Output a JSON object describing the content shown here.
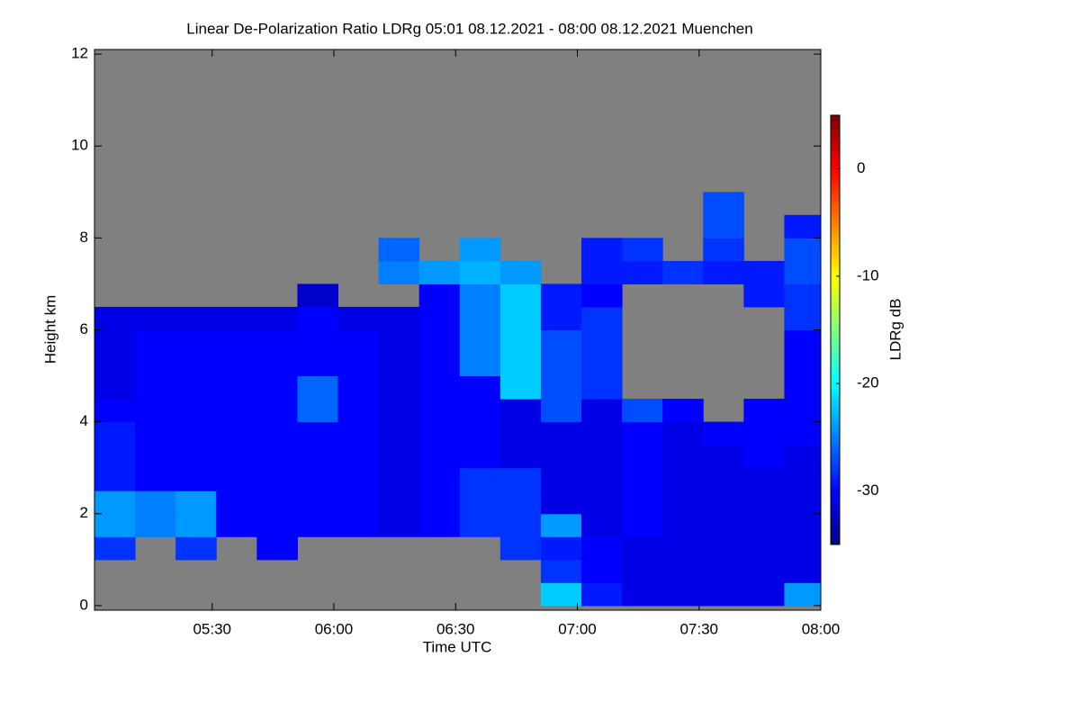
{
  "chart_data": {
    "type": "heatmap",
    "title": "Linear De-Polarization Ratio LDRg   05:01 08.12.2021 - 08:00 08.12.2021 Muenchen",
    "xlabel": "Time UTC",
    "ylabel": "Height km",
    "colorbar_label": "LDRg dB",
    "x": [
      "05:01",
      "05:11",
      "05:21",
      "05:31",
      "05:41",
      "05:51",
      "06:01",
      "06:11",
      "06:21",
      "06:31",
      "06:41",
      "06:51",
      "07:01",
      "07:11",
      "07:21",
      "07:31",
      "07:41",
      "07:51",
      "08:00"
    ],
    "y": [
      0,
      0.5,
      1,
      1.5,
      2,
      2.5,
      3,
      3.5,
      4,
      4.5,
      5,
      5.5,
      6,
      6.5,
      7,
      7.5,
      8,
      8.5,
      9
    ],
    "z": [
      [
        null,
        null,
        -28,
        -24,
        -24,
        -29,
        -29,
        -29,
        -30,
        -31,
        -31,
        -31,
        -31,
        null,
        null,
        null,
        null,
        null
      ],
      [
        null,
        null,
        null,
        -25,
        -25,
        -30,
        -30,
        -30,
        -30,
        -30,
        -30,
        -30,
        -31,
        null,
        null,
        null,
        null,
        null
      ],
      [
        null,
        null,
        -28,
        -24,
        -24,
        -30,
        -30,
        -30,
        -30,
        -30,
        -30,
        -30,
        -31,
        null,
        null,
        null,
        null,
        null
      ],
      [
        null,
        null,
        null,
        -30,
        -30,
        -30,
        -30,
        -30,
        -30,
        -30,
        -30,
        -30,
        -31,
        null,
        null,
        null,
        null,
        null
      ],
      [
        null,
        null,
        -30,
        -30,
        -30,
        -30,
        -30,
        -30,
        -30,
        -30,
        -30,
        -30,
        -31,
        null,
        null,
        null,
        null,
        null
      ],
      [
        null,
        null,
        null,
        -30,
        -30,
        -30,
        -30,
        -30,
        -26,
        -26,
        -30,
        -30,
        -30,
        -32,
        null,
        null,
        null,
        null
      ],
      [
        null,
        null,
        null,
        -30,
        -30,
        -30,
        -30,
        -30,
        -30,
        -30,
        -30,
        -30,
        -31,
        null,
        null,
        null,
        null,
        null
      ],
      [
        null,
        null,
        null,
        -31,
        -31,
        -31,
        -31,
        -31,
        -31,
        -31,
        -31,
        -31,
        -31,
        null,
        -25,
        -26,
        null,
        null
      ],
      [
        null,
        null,
        null,
        -30,
        -30,
        -30,
        -30,
        -30,
        -30,
        -30,
        -30,
        -30,
        -30,
        -30,
        -24,
        null,
        null,
        null
      ],
      [
        null,
        null,
        null,
        -28,
        -28,
        -28,
        -30,
        -30,
        -30,
        -30,
        -25,
        -25,
        -25,
        -25,
        -23,
        -24,
        null,
        null
      ],
      [
        null,
        null,
        -28,
        -28,
        -28,
        -28,
        -31,
        -31,
        -31,
        -22,
        -22,
        -22,
        -22,
        -22,
        -24,
        null,
        null,
        null
      ],
      [
        -22,
        -28,
        -29,
        -24,
        -31,
        -31,
        -31,
        -31,
        -27,
        -27,
        -27,
        -27,
        -29,
        -29,
        null,
        null,
        null,
        null
      ],
      [
        -29,
        -30,
        -30,
        -31,
        -31,
        -31,
        -31,
        -31,
        -31,
        -28,
        -28,
        -28,
        -28,
        -30,
        -29,
        -29,
        null,
        null
      ],
      [
        -31,
        -31,
        -31,
        -30,
        -30,
        -30,
        -30,
        -30,
        -27,
        null,
        null,
        null,
        null,
        null,
        -29,
        -28,
        null,
        null
      ],
      [
        -31,
        -31,
        -31,
        -31,
        -31,
        -31,
        -31,
        -31,
        -30,
        null,
        null,
        null,
        null,
        null,
        -28,
        null,
        null,
        null
      ],
      [
        -31,
        -31,
        -31,
        -31,
        -31,
        -31,
        -31,
        -30,
        null,
        null,
        null,
        null,
        null,
        null,
        -29,
        -28,
        -27,
        -27
      ],
      [
        -31,
        -31,
        -31,
        -31,
        -31,
        -31,
        -30,
        -30,
        -30,
        null,
        null,
        null,
        null,
        -29,
        -29,
        null,
        null,
        null
      ],
      [
        -24,
        -31,
        -31,
        -31,
        -31,
        -31,
        -31,
        -30,
        -30,
        -30,
        -30,
        -30,
        -28,
        -28,
        -27,
        -27,
        -29,
        null
      ]
    ],
    "xlim": [
      "05:01",
      "08:00"
    ],
    "xticks": [
      "05:30",
      "06:00",
      "06:30",
      "07:00",
      "07:30",
      "08:00"
    ],
    "ylim": [
      -0.1,
      12.1
    ],
    "yticks": [
      0,
      2,
      4,
      6,
      8,
      10,
      12
    ],
    "zlim": [
      -35,
      5
    ],
    "zticks": [
      -30,
      -20,
      -10,
      0
    ],
    "colormap": "jet",
    "nodata_color": "#808080"
  }
}
